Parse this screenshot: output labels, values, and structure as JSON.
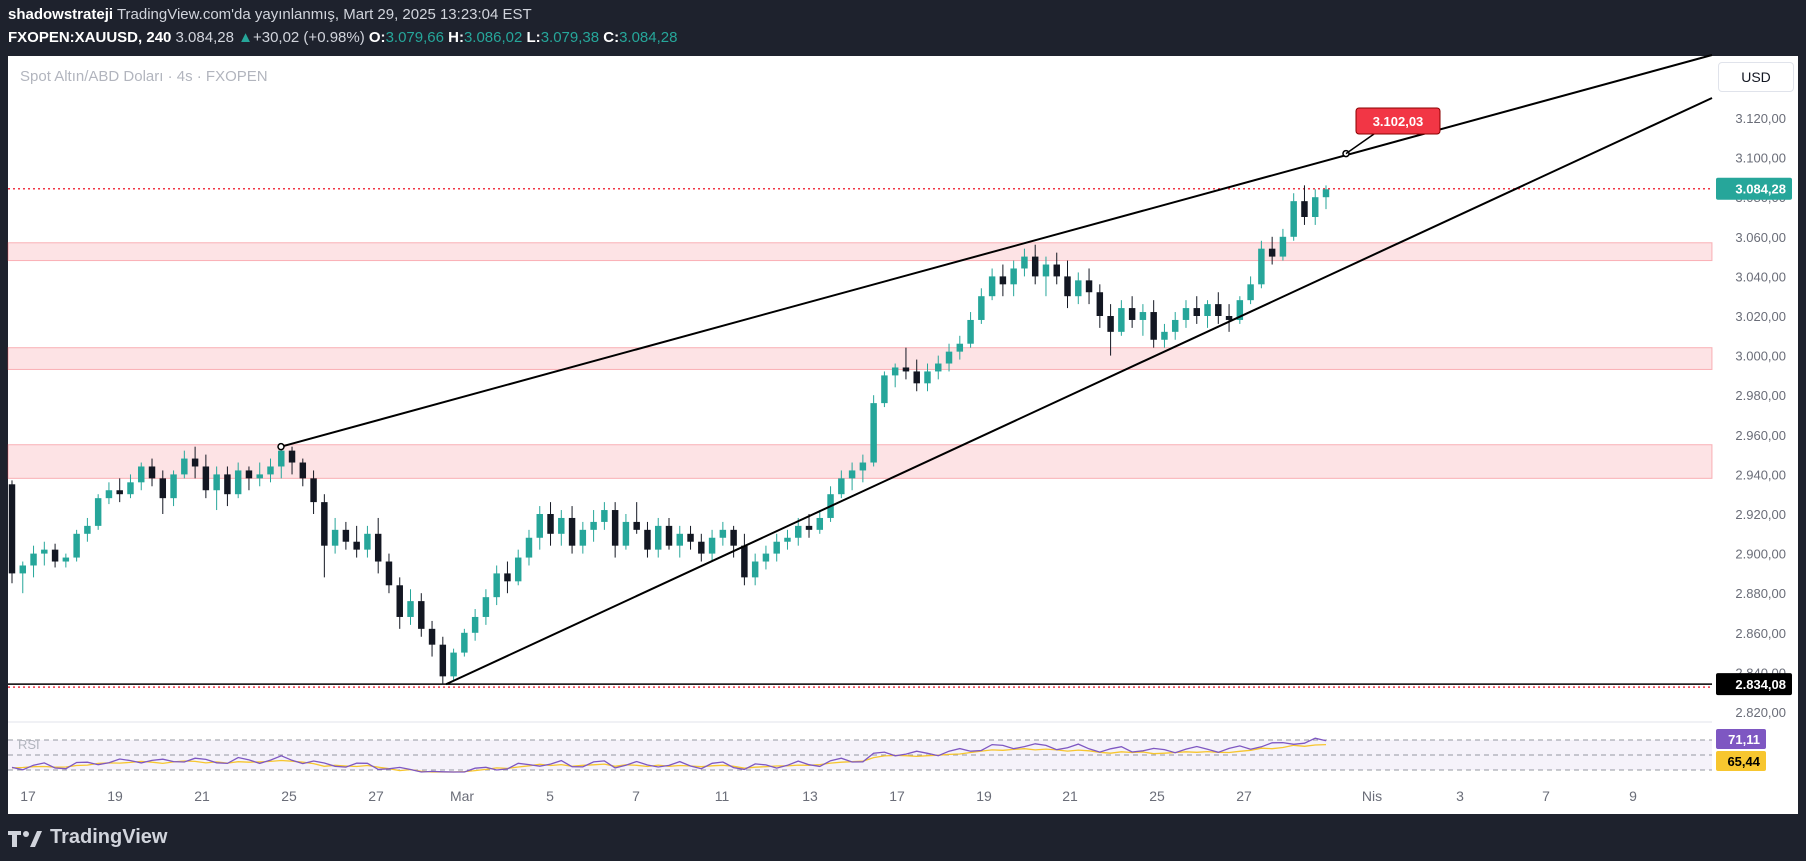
{
  "header": {
    "author": "shadowstrateji",
    "published": "TradingView.com'da yayınlanmış, Mart 29, 2025 13:23:04 EST",
    "symbol": "FXOPEN:XAUUSD, 240",
    "price": "3.084,28",
    "change": "+30,02 (+0.98%)",
    "o_label": "O:",
    "o": "3.079,66",
    "h_label": "H:",
    "h": "3.086,02",
    "l_label": "L:",
    "l": "3.079,38",
    "c_label": "C:",
    "c": "3.084,28"
  },
  "chart_title": "Spot Altın/ABD Doları · 4s · FXOPEN",
  "currency_button": "USD",
  "brand": "TradingView",
  "colors": {
    "up": "#26a69a",
    "down": "#131722",
    "zone": "#f23645",
    "callout": "#f23645",
    "rsi": "#7e57c2",
    "rsi_ma": "#f7c62f"
  },
  "chart_data": {
    "type": "candlestick",
    "title": "Spot Altın/ABD Doları · 4s · FXOPEN",
    "ylim": [
      2815,
      3140
    ],
    "y_ticks": [
      "3.120,00",
      "3.100,00",
      "3.080,00",
      "3.060,00",
      "3.040,00",
      "3.020,00",
      "3.000,00",
      "2.980,00",
      "2.960,00",
      "2.940,00",
      "2.920,00",
      "2.900,00",
      "2.880,00",
      "2.860,00",
      "2.840,00",
      "2.820,00"
    ],
    "x_ticks": [
      "17",
      "19",
      "21",
      "25",
      "27",
      "Mar",
      "5",
      "7",
      "11",
      "13",
      "17",
      "19",
      "21",
      "25",
      "27",
      "Nis",
      "3",
      "7",
      "9"
    ],
    "price_labels": {
      "last": "3.084,28",
      "low": "2.834,08",
      "target": "3.102,03"
    },
    "support_line": 2834.08,
    "last_price": 3084.28,
    "zones": [
      {
        "from": 2938,
        "to": 2955
      },
      {
        "from": 2993,
        "to": 3004
      },
      {
        "from": 3048,
        "to": 3057
      }
    ],
    "trendlines": [
      {
        "from": [
          "Feb 24",
          2954
        ],
        "to": [
          "Apr 8",
          3140
        ]
      },
      {
        "from": [
          "Feb 28",
          2834
        ],
        "to": [
          "Apr 8",
          3130
        ]
      }
    ],
    "target_point": 3102.03,
    "candles_ohlc_approx": [
      [
        2935,
        2937,
        2885,
        2890
      ],
      [
        2890,
        2896,
        2880,
        2894
      ],
      [
        2894,
        2904,
        2888,
        2900
      ],
      [
        2900,
        2906,
        2894,
        2902
      ],
      [
        2902,
        2905,
        2893,
        2896
      ],
      [
        2896,
        2900,
        2893,
        2898
      ],
      [
        2898,
        2912,
        2896,
        2910
      ],
      [
        2910,
        2918,
        2906,
        2914
      ],
      [
        2914,
        2930,
        2912,
        2928
      ],
      [
        2928,
        2936,
        2925,
        2932
      ],
      [
        2932,
        2938,
        2926,
        2930
      ],
      [
        2930,
        2940,
        2928,
        2936
      ],
      [
        2936,
        2946,
        2932,
        2944
      ],
      [
        2944,
        2948,
        2934,
        2938
      ],
      [
        2938,
        2942,
        2920,
        2928
      ],
      [
        2928,
        2942,
        2924,
        2940
      ],
      [
        2940,
        2952,
        2938,
        2948
      ],
      [
        2948,
        2954,
        2938,
        2944
      ],
      [
        2944,
        2950,
        2928,
        2932
      ],
      [
        2932,
        2944,
        2922,
        2940
      ],
      [
        2940,
        2944,
        2924,
        2930
      ],
      [
        2930,
        2946,
        2928,
        2942
      ],
      [
        2942,
        2944,
        2932,
        2938
      ],
      [
        2938,
        2946,
        2934,
        2940
      ],
      [
        2940,
        2948,
        2936,
        2944
      ],
      [
        2944,
        2954,
        2938,
        2952
      ],
      [
        2952,
        2954,
        2940,
        2946
      ],
      [
        2946,
        2948,
        2934,
        2938
      ],
      [
        2938,
        2942,
        2920,
        2926
      ],
      [
        2926,
        2930,
        2888,
        2904
      ],
      [
        2904,
        2918,
        2900,
        2912
      ],
      [
        2912,
        2916,
        2902,
        2906
      ],
      [
        2906,
        2914,
        2898,
        2902
      ],
      [
        2902,
        2914,
        2898,
        2910
      ],
      [
        2910,
        2918,
        2890,
        2896
      ],
      [
        2896,
        2900,
        2880,
        2884
      ],
      [
        2884,
        2888,
        2862,
        2868
      ],
      [
        2868,
        2882,
        2864,
        2876
      ],
      [
        2876,
        2880,
        2858,
        2862
      ],
      [
        2862,
        2866,
        2848,
        2854
      ],
      [
        2854,
        2858,
        2834,
        2838
      ],
      [
        2838,
        2852,
        2836,
        2850
      ],
      [
        2850,
        2862,
        2848,
        2860
      ],
      [
        2860,
        2872,
        2856,
        2868
      ],
      [
        2868,
        2882,
        2864,
        2878
      ],
      [
        2878,
        2894,
        2874,
        2890
      ],
      [
        2890,
        2896,
        2880,
        2886
      ],
      [
        2886,
        2902,
        2884,
        2898
      ],
      [
        2898,
        2912,
        2894,
        2908
      ],
      [
        2908,
        2924,
        2902,
        2920
      ],
      [
        2920,
        2926,
        2904,
        2910
      ],
      [
        2910,
        2922,
        2904,
        2918
      ],
      [
        2918,
        2924,
        2900,
        2904
      ],
      [
        2904,
        2916,
        2900,
        2912
      ],
      [
        2912,
        2922,
        2906,
        2916
      ],
      [
        2916,
        2926,
        2912,
        2922
      ],
      [
        2922,
        2926,
        2898,
        2904
      ],
      [
        2904,
        2920,
        2902,
        2916
      ],
      [
        2916,
        2926,
        2910,
        2912
      ],
      [
        2912,
        2916,
        2898,
        2902
      ],
      [
        2902,
        2918,
        2898,
        2914
      ],
      [
        2914,
        2918,
        2902,
        2904
      ],
      [
        2904,
        2914,
        2898,
        2910
      ],
      [
        2910,
        2914,
        2902,
        2906
      ],
      [
        2906,
        2910,
        2896,
        2900
      ],
      [
        2900,
        2912,
        2896,
        2908
      ],
      [
        2908,
        2916,
        2904,
        2912
      ],
      [
        2912,
        2914,
        2898,
        2904
      ],
      [
        2904,
        2910,
        2884,
        2888
      ],
      [
        2888,
        2900,
        2884,
        2896
      ],
      [
        2896,
        2904,
        2892,
        2900
      ],
      [
        2900,
        2910,
        2896,
        2906
      ],
      [
        2906,
        2912,
        2902,
        2908
      ],
      [
        2908,
        2918,
        2904,
        2914
      ],
      [
        2914,
        2920,
        2908,
        2912
      ],
      [
        2912,
        2922,
        2910,
        2918
      ],
      [
        2918,
        2934,
        2916,
        2930
      ],
      [
        2930,
        2942,
        2928,
        2938
      ],
      [
        2938,
        2946,
        2932,
        2942
      ],
      [
        2942,
        2950,
        2936,
        2946
      ],
      [
        2946,
        2980,
        2944,
        2976
      ],
      [
        2976,
        2992,
        2974,
        2990
      ],
      [
        2990,
        2996,
        2984,
        2994
      ],
      [
        2994,
        3004,
        2988,
        2992
      ],
      [
        2992,
        2998,
        2982,
        2986
      ],
      [
        2986,
        2996,
        2982,
        2992
      ],
      [
        2992,
        3000,
        2988,
        2996
      ],
      [
        2996,
        3006,
        2992,
        3002
      ],
      [
        3002,
        3010,
        2998,
        3006
      ],
      [
        3006,
        3022,
        3004,
        3018
      ],
      [
        3018,
        3034,
        3016,
        3030
      ],
      [
        3030,
        3044,
        3028,
        3040
      ],
      [
        3040,
        3046,
        3030,
        3036
      ],
      [
        3036,
        3048,
        3030,
        3044
      ],
      [
        3044,
        3054,
        3040,
        3050
      ],
      [
        3050,
        3056,
        3036,
        3040
      ],
      [
        3040,
        3050,
        3030,
        3046
      ],
      [
        3046,
        3052,
        3036,
        3040
      ],
      [
        3040,
        3048,
        3024,
        3030
      ],
      [
        3030,
        3042,
        3026,
        3038
      ],
      [
        3038,
        3044,
        3026,
        3032
      ],
      [
        3032,
        3036,
        3014,
        3020
      ],
      [
        3020,
        3026,
        3000,
        3012
      ],
      [
        3012,
        3028,
        3010,
        3024
      ],
      [
        3024,
        3030,
        3014,
        3018
      ],
      [
        3018,
        3026,
        3010,
        3022
      ],
      [
        3022,
        3028,
        3004,
        3008
      ],
      [
        3008,
        3016,
        3004,
        3012
      ],
      [
        3012,
        3022,
        3008,
        3018
      ],
      [
        3018,
        3028,
        3014,
        3024
      ],
      [
        3024,
        3030,
        3016,
        3020
      ],
      [
        3020,
        3028,
        3014,
        3026
      ],
      [
        3026,
        3032,
        3016,
        3020
      ],
      [
        3020,
        3026,
        3012,
        3018
      ],
      [
        3018,
        3030,
        3016,
        3028
      ],
      [
        3028,
        3040,
        3026,
        3036
      ],
      [
        3036,
        3058,
        3034,
        3054
      ],
      [
        3054,
        3060,
        3046,
        3050
      ],
      [
        3050,
        3064,
        3048,
        3060
      ],
      [
        3060,
        3082,
        3058,
        3078
      ],
      [
        3078,
        3086,
        3066,
        3070
      ],
      [
        3070,
        3084,
        3066,
        3080
      ],
      [
        3080,
        3086,
        3074,
        3084
      ]
    ],
    "rsi": {
      "label": "RSI",
      "value": "71,11",
      "ma_value": "65,44"
    }
  }
}
